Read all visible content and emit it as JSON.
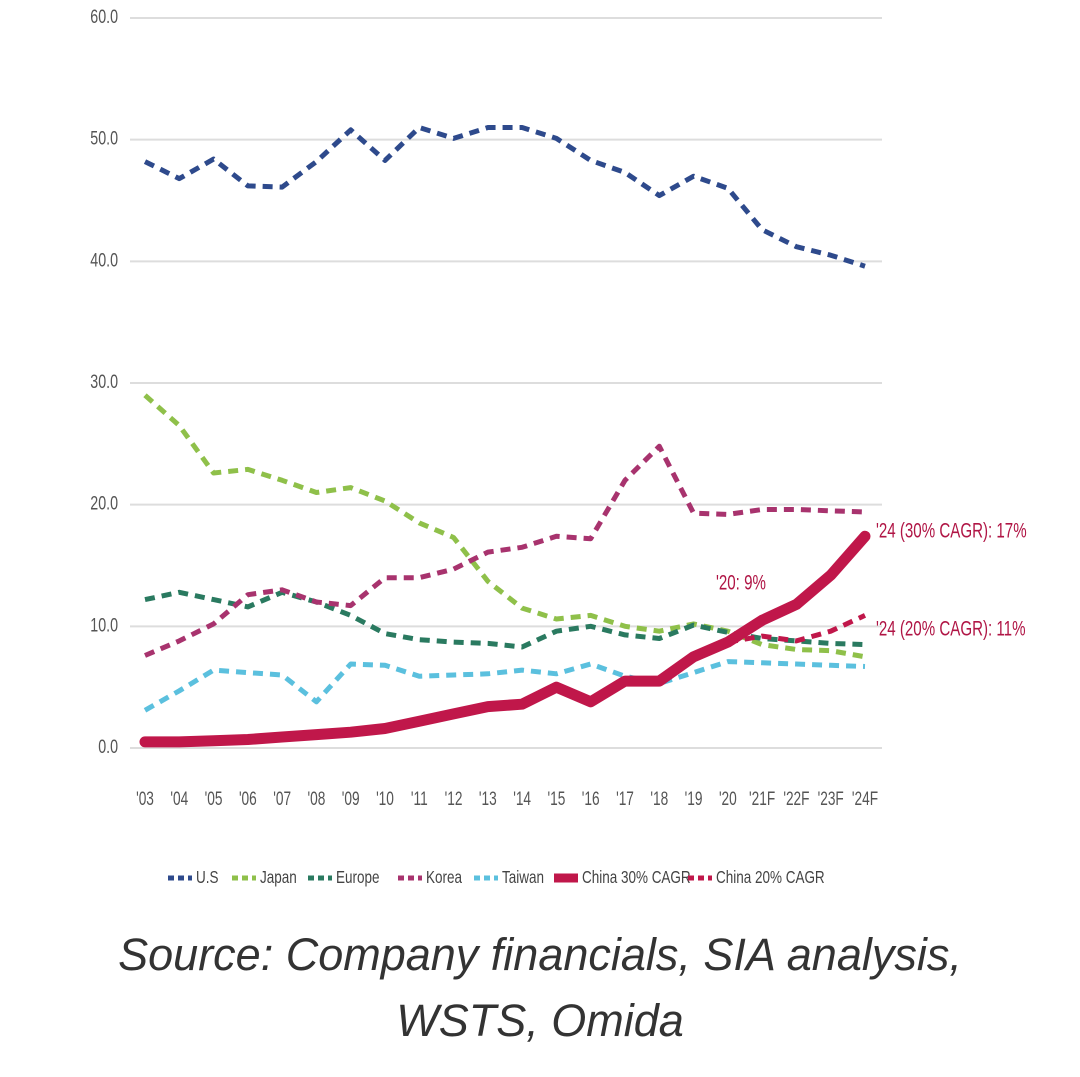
{
  "chart_data": {
    "type": "line",
    "categories": [
      "'03",
      "'04",
      "'05",
      "'06",
      "'07",
      "'08",
      "'09",
      "'10",
      "'11",
      "'12",
      "'13",
      "'14",
      "'15",
      "'16",
      "'17",
      "'18",
      "'19",
      "'20",
      "'21F",
      "'22F",
      "'23F",
      "'24F"
    ],
    "series": [
      {
        "name": "U.S",
        "color": "#2e4a8c",
        "style": "dashed",
        "values": [
          48.2,
          46.8,
          48.4,
          46.2,
          46.1,
          48.2,
          50.8,
          48.3,
          51.0,
          50.1,
          51.0,
          51.0,
          50.1,
          48.3,
          47.3,
          45.4,
          47.0,
          46.0,
          42.6,
          41.2,
          40.5,
          39.6
        ]
      },
      {
        "name": "Japan",
        "color": "#8fc04a",
        "style": "dashed",
        "values": [
          29.0,
          26.5,
          22.6,
          22.9,
          22.0,
          21.0,
          21.4,
          20.3,
          18.5,
          17.3,
          13.7,
          11.5,
          10.6,
          10.9,
          10.0,
          9.6,
          10.2,
          9.6,
          8.5,
          8.1,
          8.0,
          7.5
        ]
      },
      {
        "name": "Europe",
        "color": "#2a7a60",
        "style": "dashed",
        "values": [
          12.2,
          12.8,
          12.2,
          11.6,
          12.8,
          12.0,
          10.9,
          9.4,
          8.9,
          8.7,
          8.6,
          8.3,
          9.6,
          10.0,
          9.3,
          9.0,
          10.1,
          9.5,
          9.0,
          8.8,
          8.6,
          8.5
        ]
      },
      {
        "name": "Korea",
        "color": "#a8336e",
        "style": "dashed",
        "values": [
          7.6,
          8.8,
          10.2,
          12.6,
          13.0,
          12.0,
          11.7,
          14.0,
          14.0,
          14.7,
          16.1,
          16.5,
          17.4,
          17.2,
          22.0,
          24.8,
          19.3,
          19.2,
          19.6,
          19.6,
          19.5,
          19.4
        ]
      },
      {
        "name": "Taiwan",
        "color": "#5bc0de",
        "style": "dashed",
        "values": [
          3.1,
          4.7,
          6.4,
          6.2,
          6.0,
          3.8,
          6.9,
          6.8,
          5.9,
          6.0,
          6.1,
          6.4,
          6.1,
          6.9,
          5.9,
          5.3,
          6.2,
          7.1,
          7.0,
          6.9,
          6.8,
          6.7
        ]
      },
      {
        "name": "China 30% CAGR",
        "color": "#c0174a",
        "style": "solid",
        "values": [
          0.5,
          0.5,
          0.6,
          0.7,
          0.9,
          1.1,
          1.3,
          1.6,
          2.2,
          2.8,
          3.4,
          3.6,
          5.0,
          3.8,
          5.5,
          5.5,
          7.5,
          8.7,
          10.5,
          11.8,
          14.2,
          17.4
        ]
      },
      {
        "name": "China 20% CAGR",
        "color": "#c0174a",
        "style": "dashed",
        "values": [
          null,
          null,
          null,
          null,
          null,
          null,
          null,
          null,
          null,
          null,
          null,
          null,
          null,
          null,
          null,
          null,
          null,
          8.7,
          9.2,
          8.8,
          9.6,
          10.9
        ]
      }
    ],
    "ylim": [
      0,
      60
    ],
    "yticks": [
      {
        "value": 0,
        "label": "0.0"
      },
      {
        "value": 10,
        "label": "10.0"
      },
      {
        "value": 20,
        "label": "20.0"
      },
      {
        "value": 30,
        "label": "30.0"
      },
      {
        "value": 40,
        "label": "40.0"
      },
      {
        "value": 50,
        "label": "50.0"
      },
      {
        "value": 60,
        "label": "60.0"
      }
    ],
    "grid": true,
    "annotations": [
      "'20: 9%",
      "'24 (30% CAGR): 17%",
      "'24 (20% CAGR): 11%"
    ],
    "source": "Source: Company financials, SIA analysis, WSTS, Omida"
  }
}
